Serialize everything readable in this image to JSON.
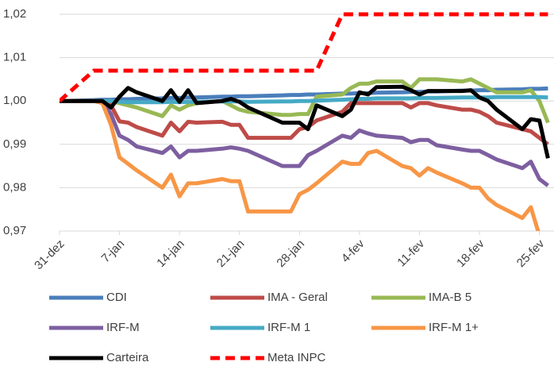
{
  "chart_data": {
    "type": "line",
    "x": [
      0,
      4,
      5,
      6,
      7,
      8,
      9,
      12,
      13,
      14,
      15,
      16,
      19,
      20,
      21,
      22,
      26,
      27,
      28,
      29,
      30,
      33,
      34,
      35,
      36,
      37,
      40,
      41,
      42,
      43,
      44,
      47,
      48,
      49,
      50,
      51,
      54,
      55,
      56,
      57
    ],
    "xlim": [
      0,
      57.7
    ],
    "xticks": [
      {
        "value": 0,
        "label": "31-dez"
      },
      {
        "value": 7,
        "label": "7-jan"
      },
      {
        "value": 14,
        "label": "14-jan"
      },
      {
        "value": 21,
        "label": "21-jan"
      },
      {
        "value": 28,
        "label": "28-jan"
      },
      {
        "value": 35,
        "label": "4-fev"
      },
      {
        "value": 42,
        "label": "11-fev"
      },
      {
        "value": 49,
        "label": "18-fev"
      },
      {
        "value": 56,
        "label": "25-fev"
      }
    ],
    "ylim": [
      0.97,
      1.02
    ],
    "yticks": [
      {
        "value": 0.97,
        "label": "0,97"
      },
      {
        "value": 0.98,
        "label": "0,98"
      },
      {
        "value": 0.99,
        "label": "0,99"
      },
      {
        "value": 1.0,
        "label": "1,00"
      },
      {
        "value": 1.01,
        "label": "1,01"
      },
      {
        "value": 1.02,
        "label": "1,02"
      }
    ],
    "grid": true,
    "series": [
      {
        "name": "CDI",
        "color": "#4a7ebb",
        "values": [
          1.0,
          1.0002,
          1.0003,
          1.0003,
          1.0004,
          1.0004,
          1.0005,
          1.0006,
          1.0007,
          1.0007,
          1.0008,
          1.0008,
          1.001,
          1.001,
          1.0011,
          1.0011,
          1.0013,
          1.0014,
          1.0014,
          1.0015,
          1.0015,
          1.0017,
          1.0017,
          1.0018,
          1.0018,
          1.0019,
          1.002,
          1.0021,
          1.0021,
          1.0022,
          1.0022,
          1.0024,
          1.0024,
          1.0025,
          1.0025,
          1.0026,
          1.0027,
          1.0028,
          1.0028,
          1.0029
        ]
      },
      {
        "name": "IMA - Geral",
        "color": "#be4b48",
        "values": [
          1.0,
          1.0,
          1.0,
          0.999,
          0.9953,
          0.995,
          0.994,
          0.992,
          0.995,
          0.993,
          0.9952,
          0.995,
          0.9952,
          0.9945,
          0.9945,
          0.9915,
          0.9915,
          0.9915,
          0.9935,
          0.994,
          0.9955,
          0.9975,
          0.9995,
          0.9995,
          0.9995,
          0.9995,
          0.9995,
          0.9985,
          0.9995,
          0.9995,
          0.999,
          0.998,
          0.998,
          0.9975,
          0.9965,
          0.995,
          0.9935,
          0.993,
          0.9915,
          0.99
        ]
      },
      {
        "name": "IMA-B 5",
        "color": "#98b954",
        "values": [
          1.0,
          1.0,
          1.0,
          1.0,
          0.9995,
          0.999,
          0.9985,
          0.9965,
          0.999,
          0.998,
          0.999,
          0.9995,
          1.0,
          0.999,
          0.998,
          0.9975,
          0.9968,
          0.9968,
          0.997,
          0.997,
          1.001,
          1.0015,
          1.003,
          1.004,
          1.004,
          1.0045,
          1.0045,
          1.003,
          1.005,
          1.005,
          1.005,
          1.0045,
          1.005,
          1.004,
          1.003,
          1.002,
          1.002,
          1.0025,
          1.0,
          0.995
        ]
      },
      {
        "name": "IRF-M",
        "color": "#7d5fa0",
        "values": [
          1.0,
          1.0,
          1.0,
          0.997,
          0.992,
          0.991,
          0.9895,
          0.988,
          0.9895,
          0.987,
          0.9885,
          0.9885,
          0.989,
          0.9893,
          0.989,
          0.9885,
          0.985,
          0.985,
          0.985,
          0.9875,
          0.9885,
          0.992,
          0.9915,
          0.9932,
          0.9925,
          0.992,
          0.9915,
          0.9905,
          0.991,
          0.991,
          0.9898,
          0.9888,
          0.9885,
          0.9885,
          0.9875,
          0.9865,
          0.9845,
          0.986,
          0.982,
          0.9805
        ]
      },
      {
        "name": "IRF-M 1",
        "color": "#46aac5",
        "values": [
          1.0,
          1.0,
          1.0,
          1.0,
          0.9998,
          0.9997,
          0.9997,
          0.9997,
          0.9998,
          0.9997,
          0.9998,
          0.9998,
          0.9999,
          0.9999,
          0.9999,
          0.9998,
          0.9999,
          0.9999,
          1.0,
          1.0,
          1.0001,
          1.0003,
          1.0004,
          1.0005,
          1.0005,
          1.0006,
          1.0006,
          1.0006,
          1.0007,
          1.0007,
          1.0007,
          1.0008,
          1.0008,
          1.0008,
          1.0008,
          1.0009,
          1.0009,
          1.0009,
          1.0009,
          1.0008
        ]
      },
      {
        "name": "IRF-M 1+",
        "color": "#f79646",
        "values": [
          1.0,
          1.0,
          0.9995,
          0.9945,
          0.987,
          0.9855,
          0.984,
          0.98,
          0.983,
          0.978,
          0.981,
          0.981,
          0.982,
          0.9815,
          0.9815,
          0.9745,
          0.9745,
          0.9745,
          0.9785,
          0.9795,
          0.981,
          0.986,
          0.9855,
          0.9855,
          0.988,
          0.9885,
          0.985,
          0.9845,
          0.9828,
          0.9845,
          0.9835,
          0.981,
          0.98,
          0.98,
          0.9775,
          0.976,
          0.973,
          0.9755,
          0.969,
          0.967
        ]
      },
      {
        "name": "Carteira",
        "color": "#000000",
        "values": [
          1.0,
          1.0,
          1.0,
          0.9985,
          1.001,
          1.003,
          1.002,
          1.0,
          1.0025,
          0.9998,
          1.0025,
          0.9995,
          1.0,
          1.0005,
          0.9998,
          0.9985,
          0.995,
          0.995,
          0.995,
          0.9935,
          0.999,
          0.9965,
          0.998,
          1.002,
          1.0015,
          1.0032,
          1.0033,
          1.0025,
          1.0015,
          1.0023,
          1.0023,
          1.0023,
          1.0025,
          1.0008,
          1.0,
          0.998,
          0.9935,
          0.9958,
          0.9955,
          0.9868
        ]
      },
      {
        "name": "Meta INPC",
        "color": "#ff0000",
        "line_style": "dashed",
        "values": [
          1.0,
          1.007,
          1.007,
          1.007,
          1.007,
          1.007,
          1.007,
          1.007,
          1.007,
          1.007,
          1.007,
          1.007,
          1.007,
          1.007,
          1.007,
          1.007,
          1.007,
          1.007,
          1.007,
          1.007,
          1.007,
          1.02,
          1.02,
          1.02,
          1.02,
          1.02,
          1.02,
          1.02,
          1.02,
          1.02,
          1.02,
          1.02,
          1.02,
          1.02,
          1.02,
          1.02,
          1.02,
          1.02,
          1.02,
          1.02
        ]
      }
    ]
  }
}
